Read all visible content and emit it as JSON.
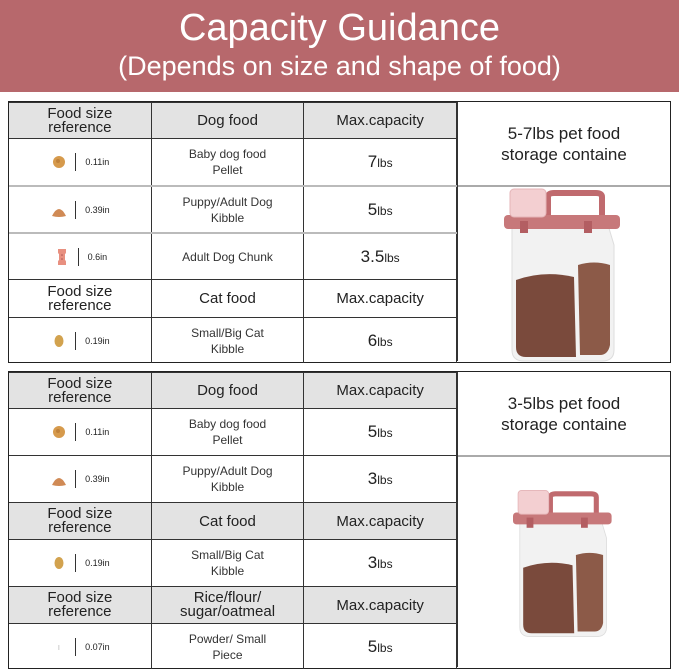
{
  "banner": {
    "title": "Capacity Guidance",
    "subtitle": "(Depends on size and shape of food)",
    "color": "#b7686c"
  },
  "tables": [
    {
      "side_title": "5-7lbs pet food storage containe",
      "image": "pet-food-container-large",
      "rows": [
        {
          "type": "header",
          "grey": true,
          "c1": "Food size reference",
          "c2": "Dog food",
          "c3": "Max.capacity"
        },
        {
          "type": "item",
          "icon": "round-pellet",
          "size": "0.11in",
          "food": "Baby dog food Pellet",
          "value": "7",
          "unit": "lbs"
        },
        {
          "type": "item",
          "icon": "triangle-kibble",
          "size": "0.39in",
          "food": "Puppy/Adult Dog Kibble",
          "value": "5",
          "unit": "lbs"
        },
        {
          "type": "item",
          "icon": "bone-chunk",
          "size": "0.6in",
          "food": "Adult Dog Chunk",
          "value": "3.5",
          "unit": "lbs"
        },
        {
          "type": "header",
          "grey": false,
          "c1": "Food size reference",
          "c2": "Cat food",
          "c3": "Max.capacity"
        },
        {
          "type": "item",
          "icon": "oval-kibble",
          "size": "0.19in",
          "food": "Small/Big Cat Kibble",
          "value": "6",
          "unit": "lbs"
        }
      ]
    },
    {
      "side_title": "3-5lbs pet food storage containe",
      "image": "pet-food-container-small",
      "rows": [
        {
          "type": "header",
          "grey": true,
          "c1": "Food size reference",
          "c2": "Dog food",
          "c3": "Max.capacity"
        },
        {
          "type": "item",
          "icon": "round-pellet",
          "size": "0.11in",
          "food": "Baby dog food Pellet",
          "value": "5",
          "unit": "lbs"
        },
        {
          "type": "item",
          "icon": "triangle-kibble",
          "size": "0.39in",
          "food": "Puppy/Adult Dog Kibble",
          "value": "3",
          "unit": "lbs"
        },
        {
          "type": "header",
          "grey": true,
          "c1": "Food size reference",
          "c2": "Cat food",
          "c3": "Max.capacity"
        },
        {
          "type": "item",
          "icon": "oval-kibble",
          "size": "0.19in",
          "food": "Small/Big Cat Kibble",
          "value": "3",
          "unit": "lbs"
        },
        {
          "type": "header",
          "grey": true,
          "c1": "Food size reference",
          "c2": "Rice/flour/ sugar/oatmeal",
          "c3": "Max.capacity"
        },
        {
          "type": "item",
          "icon": "powder",
          "size": "0.07in",
          "food": "Powder/ Small Piece",
          "value": "5",
          "unit": "lbs"
        }
      ]
    }
  ]
}
